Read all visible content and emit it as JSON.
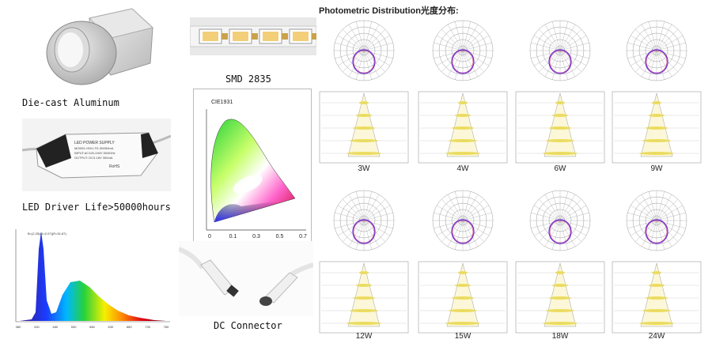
{
  "captions": {
    "aluminum": "Die-cast Aluminum",
    "driver": "LED Driver Life>50000hours",
    "smd": "SMD 2835",
    "connector": "DC Connector"
  },
  "driver_label": {
    "line1": "LED POWER SUPPLY",
    "line2": "MODEL:HW-LTD-3W/50mA",
    "line3": "INPUT:AC100-240V 50/60Hz",
    "line4": "OUTPUT: DC3-18V 300mA",
    "brand": "RoHS"
  },
  "cie": {
    "title": "CIE1931",
    "ticks_x": [
      "0",
      "0.1",
      "0.3",
      "0.5",
      "0.7"
    ]
  },
  "spectrum": {
    "header": "B=(2.25)(A=2.07)(R=51.87)",
    "ticks_x": [
      "380",
      "430",
      "480",
      "530",
      "580",
      "630",
      "680",
      "730",
      "780"
    ]
  },
  "photometric": {
    "title": "Photometric Distribution光度分布:",
    "panels": [
      "3W",
      "4W",
      "6W",
      "9W",
      "12W",
      "15W",
      "18W",
      "24W"
    ]
  }
}
